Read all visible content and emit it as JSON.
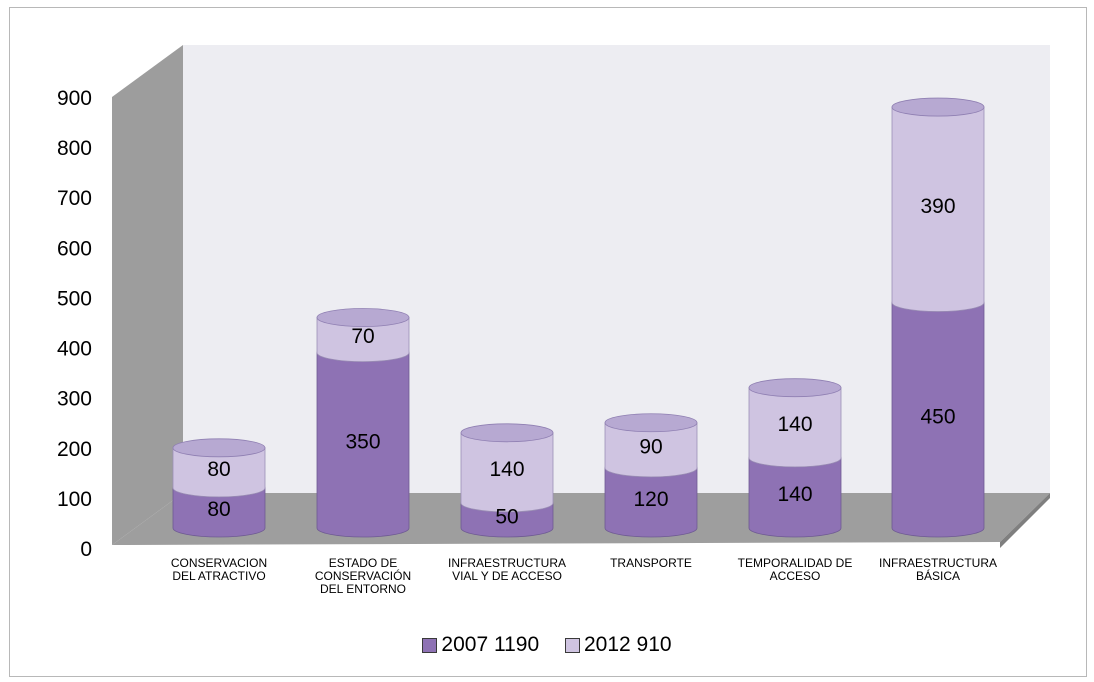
{
  "chart_data": {
    "type": "bar",
    "stacked": true,
    "style": "3d-cylinder",
    "categories": [
      "CONSERVACION\nDEL ATRACTIVO",
      "ESTADO DE\nCONSERVACIÓN\nDEL ENTORNO",
      "INFRAESTRUCTURA\nVIAL Y DE ACCESO",
      "TRANSPORTE",
      "TEMPORALIDAD DE\nACCESO",
      "INFRAESTRUCTURA\nBÁSICA"
    ],
    "series": [
      {
        "name": "2007 1190",
        "values": [
          80,
          350,
          50,
          120,
          140,
          450
        ],
        "color": "#8e72b4",
        "top_color": "#a58fc6"
      },
      {
        "name": "2012 910",
        "values": [
          80,
          70,
          140,
          90,
          140,
          390
        ],
        "color": "#cfc4e1",
        "top_color": "#b7a9d2"
      }
    ],
    "yticks": [
      "0",
      "100",
      "200",
      "300",
      "400",
      "500",
      "600",
      "700",
      "800",
      "900"
    ],
    "ylim": [
      0,
      900
    ],
    "title": "",
    "xlabel": "",
    "ylabel": "",
    "grid": false,
    "legend_position": "bottom",
    "wall_color": "#ededf2",
    "side_wall_color": "#9d9d9d",
    "floor_color": "#9e9e9e"
  }
}
